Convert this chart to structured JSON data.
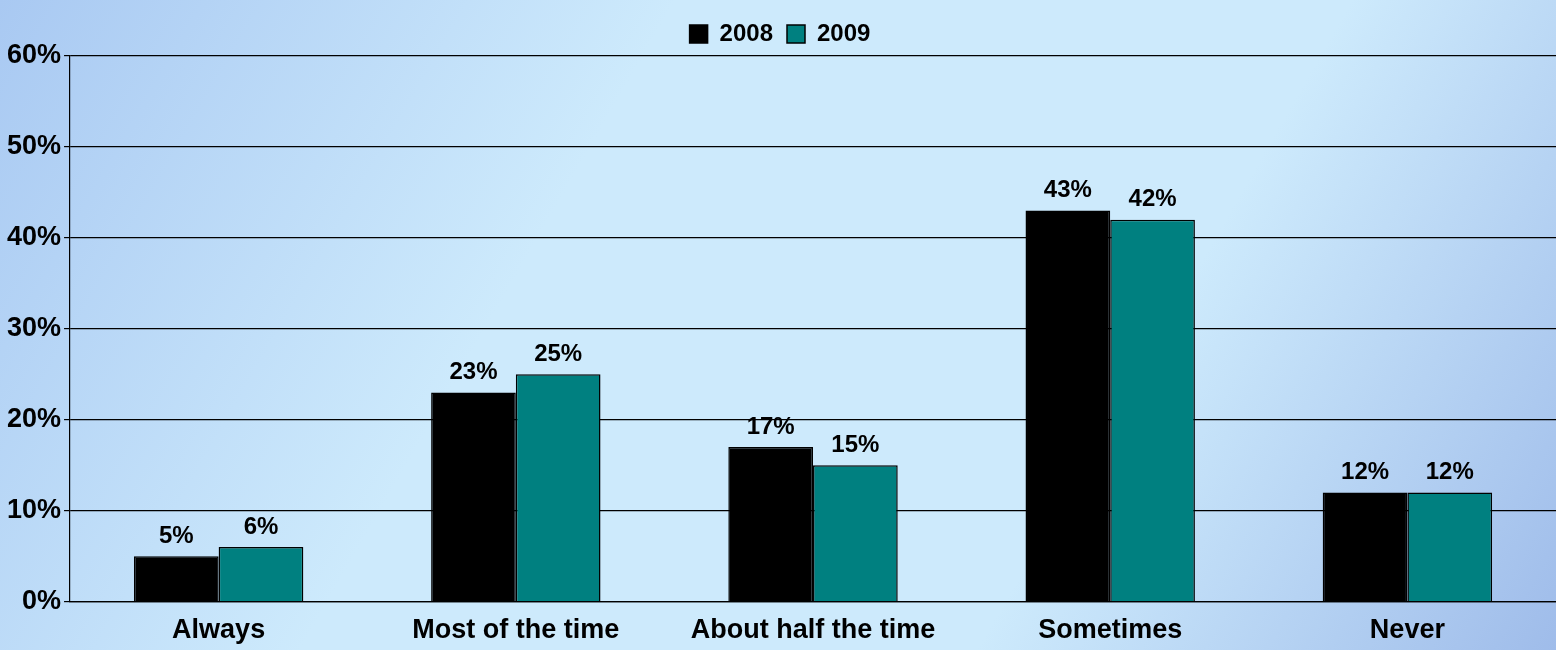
{
  "chart_data": {
    "type": "bar",
    "categories": [
      "Always",
      "Most of the time",
      "About half the time",
      "Sometimes",
      "Never"
    ],
    "series": [
      {
        "name": "2008",
        "color": "#000000",
        "values": [
          5,
          23,
          17,
          43,
          12
        ],
        "value_labels": [
          "5%",
          "23%",
          "17%",
          "43%",
          "12%"
        ]
      },
      {
        "name": "2009",
        "color": "#008080",
        "values": [
          6,
          25,
          15,
          42,
          12
        ],
        "value_labels": [
          "6%",
          "25%",
          "15%",
          "42%",
          "12%"
        ]
      }
    ],
    "ylim": [
      0,
      60
    ],
    "yticks": [
      {
        "value": 0,
        "label": "0%"
      },
      {
        "value": 10,
        "label": "10%"
      },
      {
        "value": 20,
        "label": "20%"
      },
      {
        "value": 30,
        "label": "30%"
      },
      {
        "value": 40,
        "label": "40%"
      },
      {
        "value": 50,
        "label": "50%"
      },
      {
        "value": 60,
        "label": "60%"
      }
    ],
    "grid": "y",
    "legend": "top"
  }
}
